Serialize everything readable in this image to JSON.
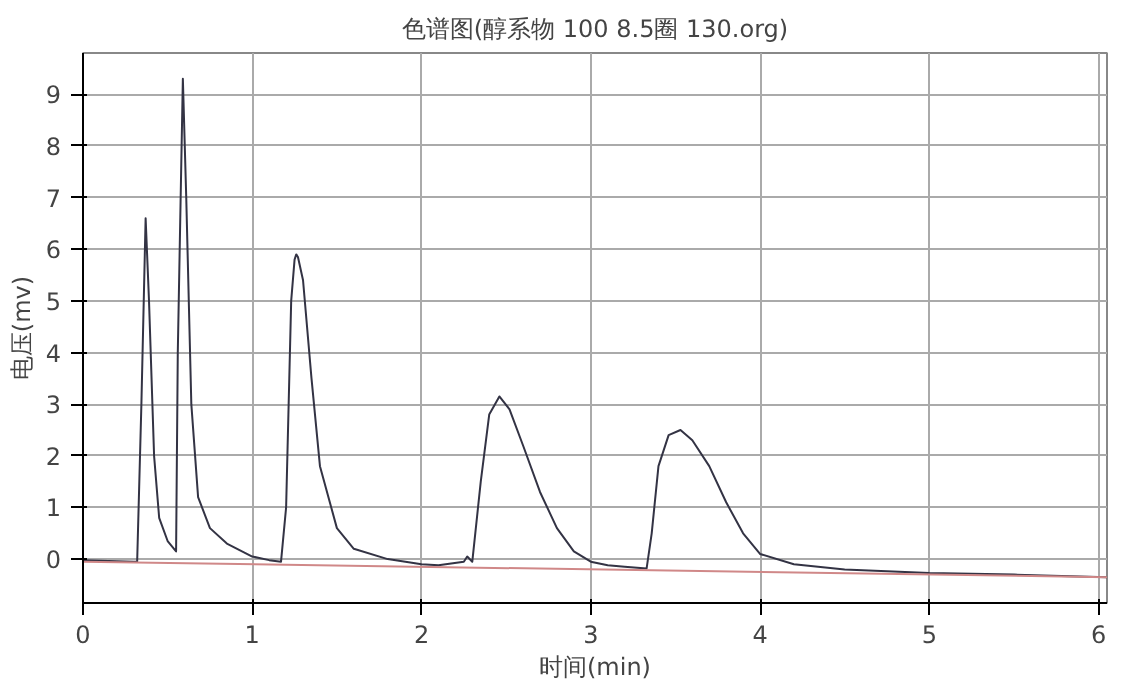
{
  "chart_data": {
    "type": "line",
    "title": "色谱图(醇系物 100 8.5圈 130.org)",
    "xlabel": "时间(min)",
    "ylabel": "电压(mv)",
    "series": [
      {
        "color": "#333344",
        "x": [
          0,
          0.3,
          0.32,
          0.345,
          0.37,
          0.39,
          0.42,
          0.45,
          0.5,
          0.55,
          0.56,
          0.59,
          0.61,
          0.64,
          0.68,
          0.75,
          0.85,
          1.0,
          1.1,
          1.17,
          1.2,
          1.23,
          1.25,
          1.26,
          1.27,
          1.3,
          1.35,
          1.4,
          1.5,
          1.6,
          1.8,
          2.0,
          2.1,
          2.25,
          2.27,
          2.3,
          2.35,
          2.4,
          2.46,
          2.52,
          2.6,
          2.7,
          2.8,
          2.9,
          3.0,
          3.1,
          3.2,
          3.33,
          3.36,
          3.4,
          3.46,
          3.53,
          3.6,
          3.7,
          3.8,
          3.9,
          4.0,
          4.2,
          4.5,
          5.0,
          5.5,
          6.05
        ],
        "values": [
          -0.02,
          -0.05,
          -0.05,
          3,
          6.6,
          5,
          2,
          0.8,
          0.35,
          0.15,
          4,
          9.3,
          7,
          3,
          1.2,
          0.6,
          0.3,
          0.05,
          -0.02,
          -0.05,
          1,
          5,
          5.8,
          5.9,
          5.85,
          5.4,
          3.5,
          1.8,
          0.6,
          0.2,
          0,
          -0.1,
          -0.12,
          -0.05,
          0.05,
          -0.05,
          1.5,
          2.8,
          3.15,
          2.9,
          2.2,
          1.3,
          0.6,
          0.15,
          -0.05,
          -0.12,
          -0.15,
          -0.18,
          0.5,
          1.8,
          2.4,
          2.5,
          2.3,
          1.8,
          1.1,
          0.5,
          0.1,
          -0.1,
          -0.2,
          -0.27,
          -0.3,
          -0.35
        ]
      },
      {
        "color": "#d08888",
        "x": [
          0,
          6.05
        ],
        "values": [
          -0.05,
          -0.35
        ]
      }
    ],
    "xlim": [
      0,
      6.05
    ],
    "ylim": [
      -0.85,
      9.8
    ],
    "xticks": [
      0,
      1,
      2,
      3,
      4,
      5,
      6
    ],
    "yticks": [
      0,
      1,
      2,
      3,
      4,
      5,
      6,
      7,
      8,
      9
    ],
    "grid": true,
    "marker": "none",
    "line_style": "solid"
  }
}
